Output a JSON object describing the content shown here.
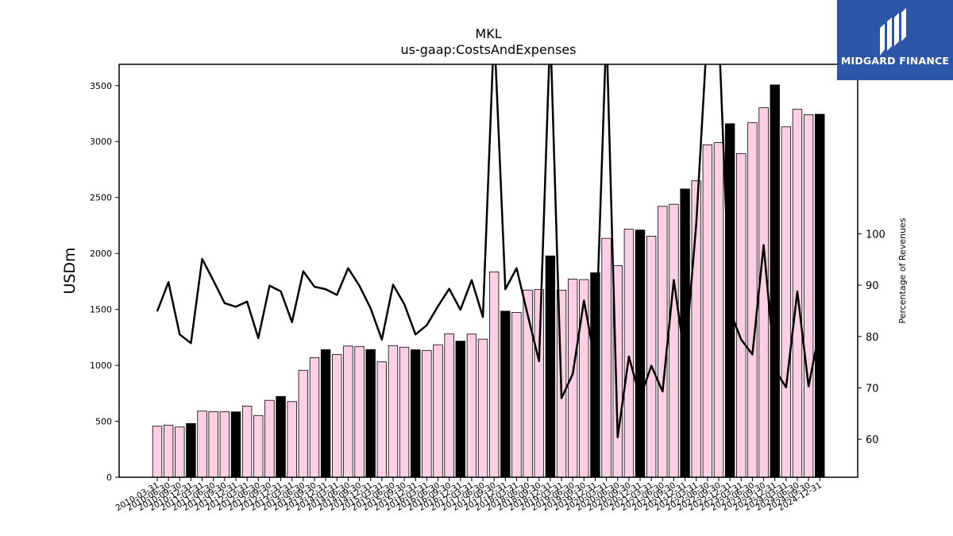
{
  "logo": {
    "text": "MIDGARD FINANCE",
    "icon": "midgard-finance-logo-icon",
    "bg_color": "#2c57a8"
  },
  "colors": {
    "bar_pink": "#ffd0e4",
    "bar_black": "#000000",
    "line": "#000000"
  },
  "chart_data": {
    "type": "bar",
    "title": "MKL",
    "subtitle": "us-gaap:CostsAndExpenses",
    "ylabel": "USDm",
    "y2label": "Percentage of Revenues",
    "ylim": [
      0,
      3690
    ],
    "y2lim": [
      52.6,
      133.0
    ],
    "yticks": [
      0,
      500,
      1000,
      1500,
      2000,
      2500,
      3000,
      3500
    ],
    "y2ticks": [
      60,
      70,
      80,
      90,
      100
    ],
    "grid": false,
    "categories": [
      "2010-03-31",
      "2010-06-30",
      "2010-09-30",
      "2010-12-31",
      "2011-03-31",
      "2011-06-30",
      "2011-09-30",
      "2011-12-31",
      "2012-03-31",
      "2012-06-30",
      "2012-09-30",
      "2012-12-31",
      "2013-03-31",
      "2013-06-30",
      "2013-09-30",
      "2013-12-31",
      "2014-03-31",
      "2014-06-30",
      "2014-09-30",
      "2014-12-31",
      "2015-03-31",
      "2015-06-30",
      "2015-09-30",
      "2015-12-31",
      "2016-03-31",
      "2016-06-30",
      "2016-09-30",
      "2016-12-31",
      "2017-03-31",
      "2017-06-30",
      "2017-09-30",
      "2017-12-31",
      "2018-03-31",
      "2018-06-30",
      "2018-09-30",
      "2018-12-31",
      "2019-03-31",
      "2019-06-30",
      "2019-09-30",
      "2019-12-31",
      "2020-03-31",
      "2020-06-30",
      "2020-09-30",
      "2020-12-31",
      "2021-03-31",
      "2021-06-30",
      "2021-09-30",
      "2021-12-31",
      "2022-03-31",
      "2022-06-30",
      "2022-09-30",
      "2022-12-31",
      "2023-03-31",
      "2023-06-30",
      "2023-09-30",
      "2023-12-31",
      "2024-03-31",
      "2024-06-30",
      "2024-09-30",
      "2024-12-31"
    ],
    "series": [
      {
        "type": "bar",
        "values": [
          456,
          466,
          449,
          480,
          591,
          586,
          586,
          584,
          636,
          551,
          687,
          722,
          676,
          956,
          1068,
          1140,
          1096,
          1172,
          1169,
          1141,
          1031,
          1176,
          1162,
          1139,
          1133,
          1184,
          1282,
          1216,
          1279,
          1234,
          1835,
          1484,
          1473,
          1673,
          1677,
          1978,
          1672,
          1770,
          1766,
          1827,
          2135,
          1890,
          2216,
          2209,
          2154,
          2421,
          2440,
          2576,
          2649,
          2971,
          2990,
          3159,
          2892,
          3170,
          3302,
          3506,
          3131,
          3288,
          3240,
          3244
        ],
        "year_end_black": true
      },
      {
        "type": "line",
        "values": [
          84.9,
          90.6,
          80.4,
          78.7,
          95.1,
          90.9,
          86.5,
          85.8,
          86.8,
          79.7,
          89.9,
          88.8,
          82.8,
          92.7,
          89.7,
          89.2,
          88.1,
          93.3,
          89.9,
          85.5,
          79.4,
          90.1,
          86.3,
          80.4,
          82.2,
          85.9,
          89.3,
          85.2,
          91.0,
          83.8,
          140,
          89.2,
          93.3,
          84.1,
          75.2,
          140,
          68.0,
          72.7,
          87.0,
          75.0,
          140,
          60.4,
          76.1,
          68.0,
          74.3,
          69.3,
          91.0,
          75.5,
          102.0,
          140,
          140,
          85.0,
          79.4,
          76.5,
          97.8,
          73.6,
          70.1,
          88.8,
          70.3,
          81.5
        ]
      }
    ]
  }
}
